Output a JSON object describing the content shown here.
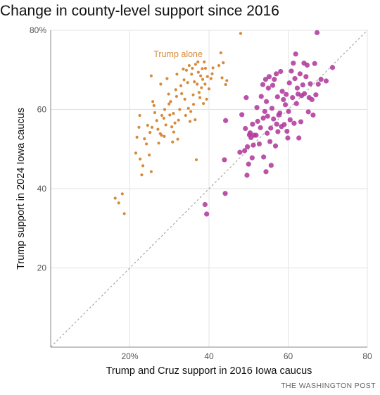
{
  "title": "Change in county-level support since 2016",
  "source": "THE WASHINGTON POST",
  "colors": {
    "trump_alone": "#d68a3a",
    "trump_and_cruz": "#b03a9c",
    "grid": "#e3e3e3",
    "axis": "#888888",
    "diagonal": "#999999"
  },
  "chart_data": {
    "type": "scatter",
    "title": "Change in county-level support since 2016",
    "xlabel": "Trump and Cruz support in 2016 Iowa caucus",
    "ylabel": "Trump support in 2024 Iowa caucus",
    "xlim": [
      0,
      80
    ],
    "ylim": [
      0,
      80
    ],
    "x_ticks": [
      20,
      40,
      60,
      80
    ],
    "x_tick_labels": [
      "20%",
      "40",
      "60",
      "80"
    ],
    "y_ticks": [
      20,
      40,
      60,
      80
    ],
    "y_tick_labels": [
      "20",
      "40",
      "60",
      "80%"
    ],
    "grid": true,
    "reference_line": "y = x",
    "annotations": [
      {
        "text": "Trump alone",
        "x": 26,
        "y": 74,
        "series": "Trump alone"
      }
    ],
    "series": [
      {
        "name": "Trump alone",
        "points": [
          [
            16.3,
            37.6
          ],
          [
            17.2,
            36.4
          ],
          [
            18.1,
            38.7
          ],
          [
            18.6,
            33.7
          ],
          [
            21.5,
            49.0
          ],
          [
            21.8,
            53.0
          ],
          [
            22.3,
            55.5
          ],
          [
            22.5,
            58.5
          ],
          [
            22.6,
            47.5
          ],
          [
            23.0,
            43.5
          ],
          [
            23.3,
            45.8
          ],
          [
            23.7,
            52.6
          ],
          [
            24.2,
            51.3
          ],
          [
            24.5,
            56.0
          ],
          [
            24.9,
            48.5
          ],
          [
            25.1,
            54.2
          ],
          [
            25.4,
            44.3
          ],
          [
            25.6,
            55.5
          ],
          [
            25.4,
            68.5
          ],
          [
            25.8,
            62.0
          ],
          [
            26.1,
            61.0
          ],
          [
            26.3,
            59.2
          ],
          [
            26.8,
            57.2
          ],
          [
            27.1,
            55.0
          ],
          [
            27.3,
            51.5
          ],
          [
            27.7,
            53.9
          ],
          [
            27.8,
            66.4
          ],
          [
            28.0,
            53.5
          ],
          [
            28.1,
            58.5
          ],
          [
            28.6,
            57.8
          ],
          [
            28.8,
            60.0
          ],
          [
            28.7,
            53.2
          ],
          [
            29.1,
            56.1
          ],
          [
            29.4,
            67.8
          ],
          [
            29.8,
            63.9
          ],
          [
            29.9,
            61.4
          ],
          [
            30.1,
            58.6
          ],
          [
            30.3,
            62.0
          ],
          [
            30.6,
            55.6
          ],
          [
            30.8,
            51.8
          ],
          [
            31.0,
            59.0
          ],
          [
            31.1,
            54.3
          ],
          [
            31.4,
            56.6
          ],
          [
            31.6,
            65.0
          ],
          [
            31.8,
            63.3
          ],
          [
            31.9,
            68.9
          ],
          [
            32.1,
            52.5
          ],
          [
            32.3,
            57.3
          ],
          [
            32.6,
            60.0
          ],
          [
            32.9,
            66.0
          ],
          [
            33.1,
            64.0
          ],
          [
            33.5,
            70.2
          ],
          [
            33.7,
            67.5
          ],
          [
            33.9,
            62.6
          ],
          [
            34.1,
            58.5
          ],
          [
            34.3,
            69.9
          ],
          [
            34.6,
            66.8
          ],
          [
            34.8,
            60.3
          ],
          [
            35.0,
            71.1
          ],
          [
            35.2,
            57.0
          ],
          [
            35.4,
            59.5
          ],
          [
            35.6,
            68.9
          ],
          [
            35.8,
            70.4
          ],
          [
            36.0,
            63.7
          ],
          [
            36.1,
            61.3
          ],
          [
            36.3,
            67.0
          ],
          [
            36.5,
            57.4
          ],
          [
            36.6,
            71.4
          ],
          [
            36.8,
            47.3
          ],
          [
            37.0,
            66.4
          ],
          [
            37.2,
            72.0
          ],
          [
            37.3,
            69.4
          ],
          [
            37.5,
            64.3
          ],
          [
            37.7,
            63.0
          ],
          [
            37.9,
            68.5
          ],
          [
            38.1,
            65.5
          ],
          [
            38.3,
            70.3
          ],
          [
            38.4,
            67.6
          ],
          [
            38.6,
            61.5
          ],
          [
            38.8,
            72.0
          ],
          [
            39.0,
            66.4
          ],
          [
            39.1,
            70.4
          ],
          [
            39.4,
            62.6
          ],
          [
            39.6,
            68.3
          ],
          [
            40.0,
            65.2
          ],
          [
            40.5,
            67.8
          ],
          [
            40.8,
            69.0
          ],
          [
            41.0,
            70.5
          ],
          [
            42.5,
            71.1
          ],
          [
            43.0,
            74.3
          ],
          [
            43.3,
            68.0
          ],
          [
            43.6,
            71.8
          ],
          [
            44.2,
            66.3
          ],
          [
            44.5,
            67.3
          ],
          [
            48.0,
            79.2
          ]
        ]
      },
      {
        "name": "Trump and Cruz",
        "points": [
          [
            39.0,
            36.0
          ],
          [
            39.4,
            33.6
          ],
          [
            43.9,
            47.3
          ],
          [
            44.1,
            38.8
          ],
          [
            44.2,
            57.2
          ],
          [
            47.8,
            49.2
          ],
          [
            48.3,
            58.7
          ],
          [
            49.0,
            49.6
          ],
          [
            49.2,
            55.2
          ],
          [
            49.4,
            63.0
          ],
          [
            49.6,
            43.4
          ],
          [
            49.7,
            50.6
          ],
          [
            50.0,
            46.2
          ],
          [
            50.2,
            53.6
          ],
          [
            50.4,
            54.1
          ],
          [
            50.6,
            52.9
          ],
          [
            50.9,
            47.8
          ],
          [
            51.0,
            56.3
          ],
          [
            51.2,
            51.0
          ],
          [
            51.4,
            53.5
          ],
          [
            51.9,
            53.5
          ],
          [
            52.1,
            60.5
          ],
          [
            52.3,
            57.0
          ],
          [
            52.7,
            51.3
          ],
          [
            53.0,
            55.4
          ],
          [
            53.2,
            63.3
          ],
          [
            53.6,
            66.3
          ],
          [
            53.7,
            57.8
          ],
          [
            53.8,
            48.0
          ],
          [
            54.1,
            59.5
          ],
          [
            54.3,
            67.6
          ],
          [
            54.4,
            44.3
          ],
          [
            54.5,
            62.0
          ],
          [
            54.7,
            54.0
          ],
          [
            54.8,
            58.3
          ],
          [
            55.0,
            65.4
          ],
          [
            55.2,
            68.3
          ],
          [
            55.4,
            51.9
          ],
          [
            55.6,
            55.3
          ],
          [
            55.7,
            45.9
          ],
          [
            55.9,
            60.3
          ],
          [
            56.1,
            66.1
          ],
          [
            56.3,
            57.6
          ],
          [
            56.5,
            67.6
          ],
          [
            56.8,
            50.8
          ],
          [
            57.0,
            69.0
          ],
          [
            57.1,
            56.3
          ],
          [
            57.3,
            63.2
          ],
          [
            57.4,
            54.4
          ],
          [
            57.6,
            58.6
          ],
          [
            57.9,
            59.1
          ],
          [
            58.1,
            69.6
          ],
          [
            58.3,
            55.7
          ],
          [
            58.5,
            64.6
          ],
          [
            58.8,
            62.5
          ],
          [
            59.0,
            56.2
          ],
          [
            59.3,
            61.2
          ],
          [
            59.5,
            63.8
          ],
          [
            59.7,
            54.5
          ],
          [
            59.9,
            52.8
          ],
          [
            60.1,
            59.5
          ],
          [
            60.3,
            66.7
          ],
          [
            60.5,
            57.4
          ],
          [
            60.8,
            69.7
          ],
          [
            61.1,
            63.0
          ],
          [
            61.3,
            71.7
          ],
          [
            61.5,
            56.5
          ],
          [
            61.7,
            67.8
          ],
          [
            61.9,
            74.0
          ],
          [
            62.1,
            61.5
          ],
          [
            62.3,
            65.4
          ],
          [
            62.5,
            63.9
          ],
          [
            62.7,
            52.8
          ],
          [
            63.0,
            69.0
          ],
          [
            63.2,
            56.9
          ],
          [
            63.4,
            63.5
          ],
          [
            63.7,
            66.2
          ],
          [
            64.0,
            71.7
          ],
          [
            64.1,
            64.0
          ],
          [
            64.5,
            68.3
          ],
          [
            64.8,
            71.2
          ],
          [
            65.1,
            59.4
          ],
          [
            65.3,
            63.0
          ],
          [
            65.6,
            66.5
          ],
          [
            66.0,
            62.5
          ],
          [
            66.3,
            58.6
          ],
          [
            66.7,
            71.6
          ],
          [
            67.0,
            63.7
          ],
          [
            67.3,
            79.4
          ],
          [
            67.6,
            66.4
          ],
          [
            68.3,
            67.6
          ],
          [
            69.6,
            67.2
          ],
          [
            71.2,
            70.6
          ]
        ]
      }
    ]
  }
}
